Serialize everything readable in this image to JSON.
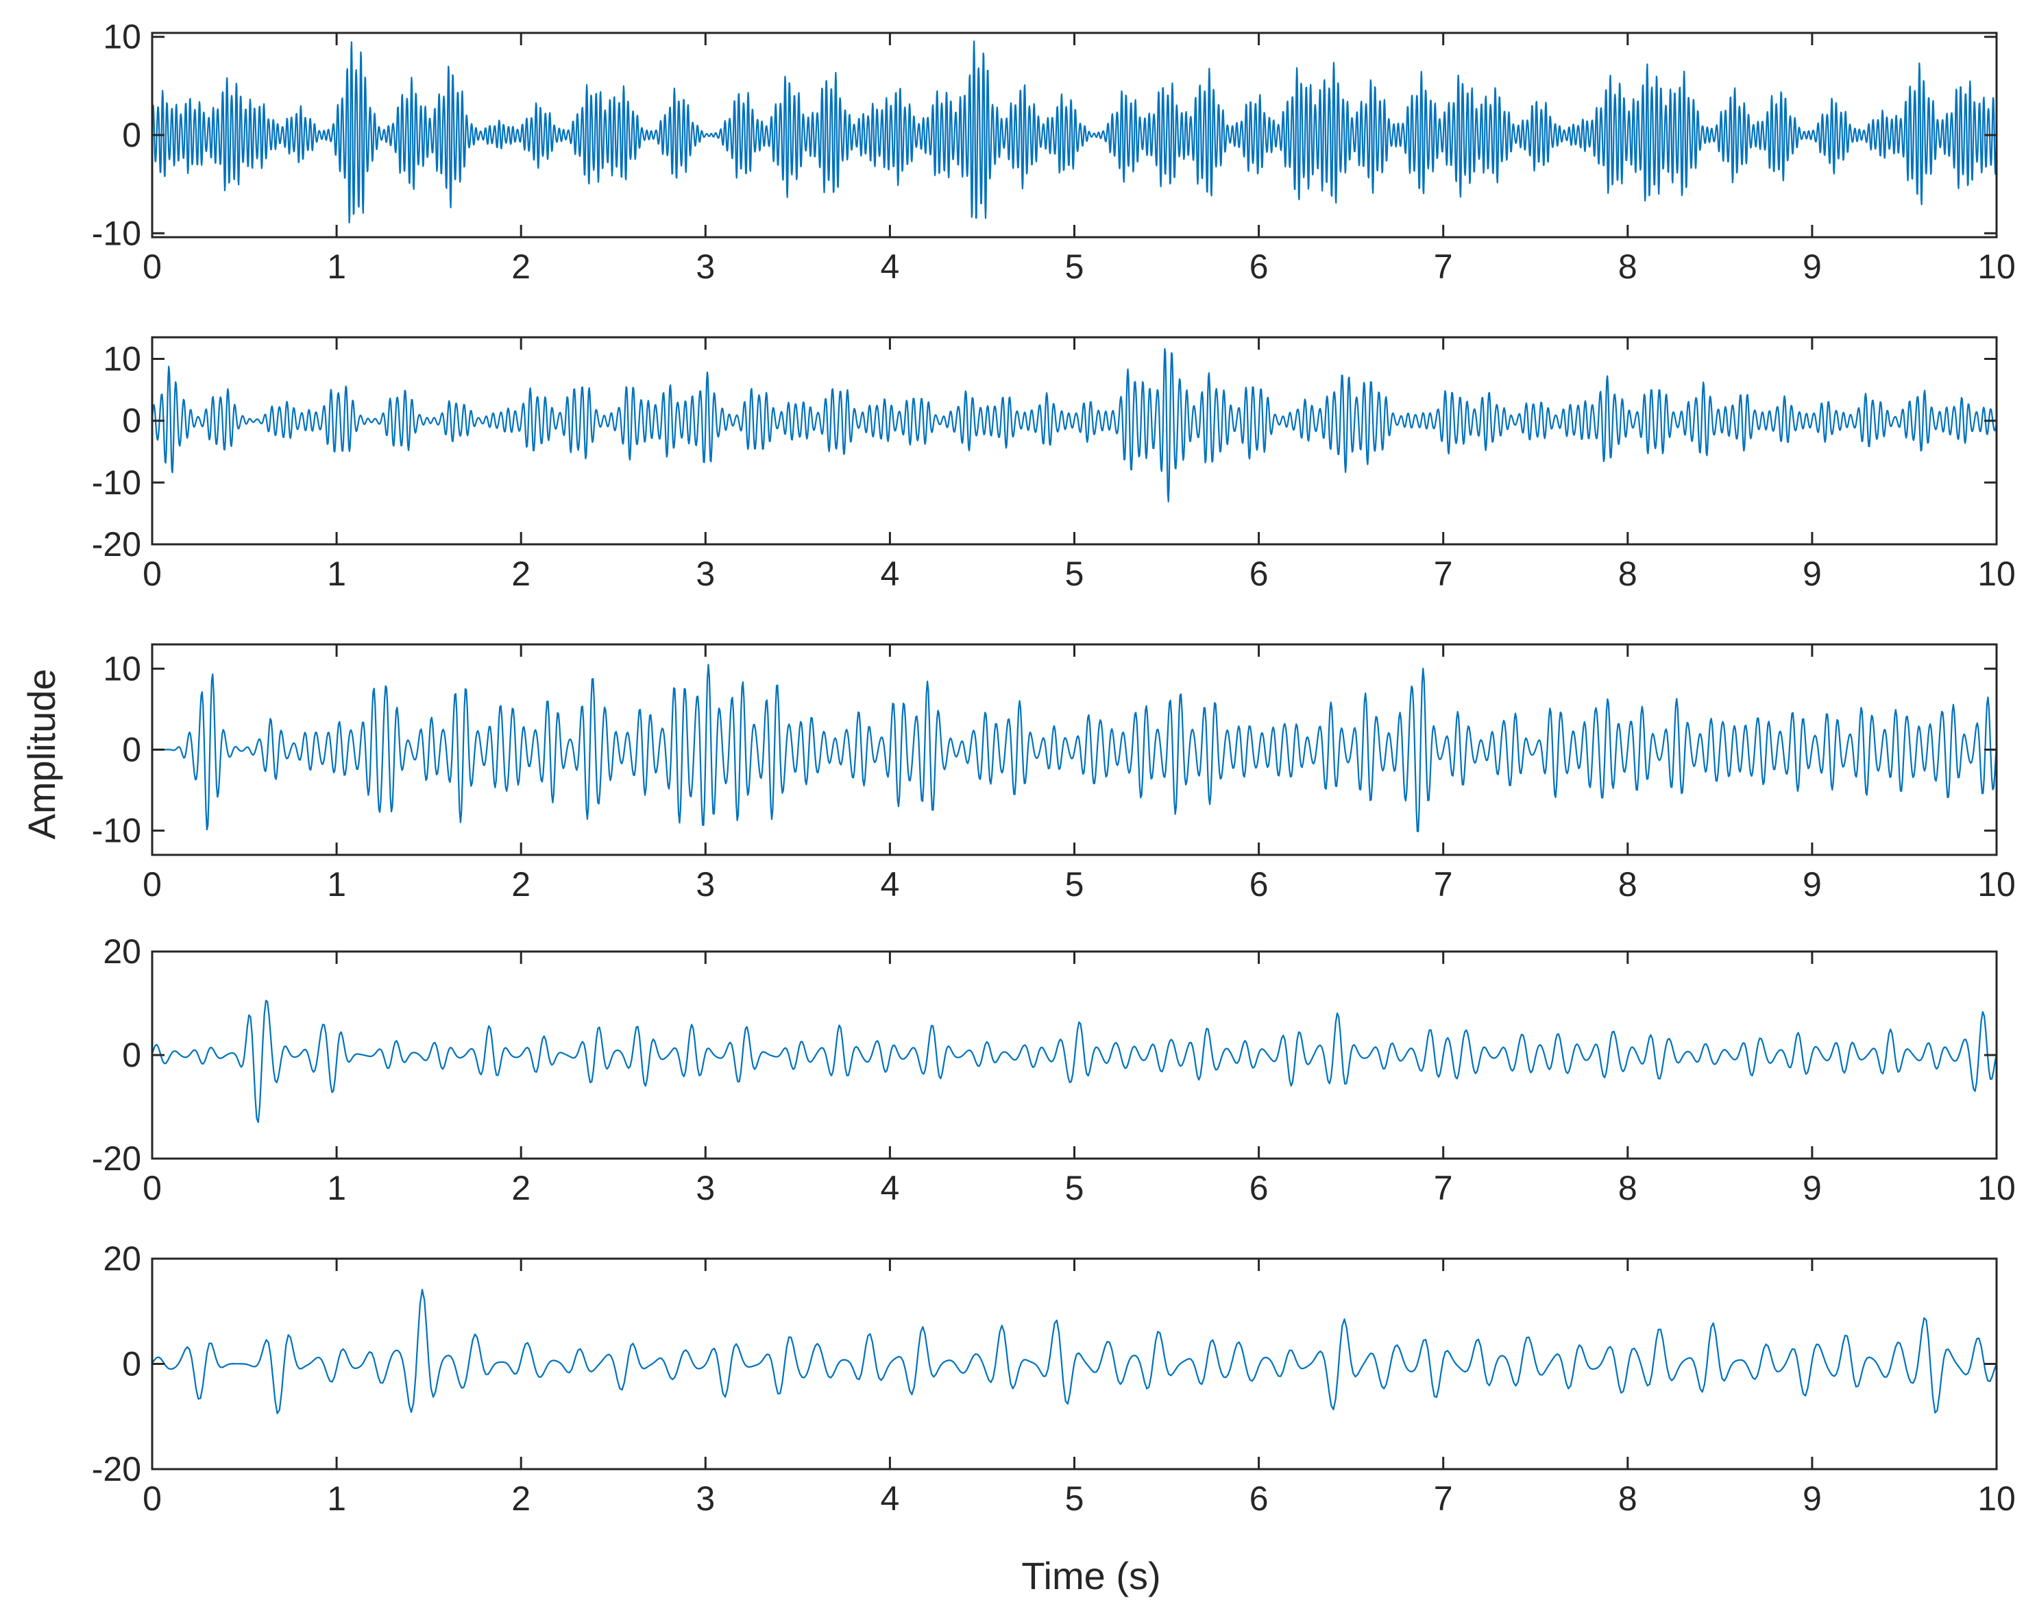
{
  "chart_data": {
    "type": "line",
    "layout": "5 stacked subplots sharing the time axis",
    "xlabel": "Time (s)",
    "ylabel": "Amplitude",
    "grid": false,
    "legend": "none",
    "line_color": "#0072BD",
    "axes_color": "#262626",
    "subplots": [
      {
        "xlim": [
          0,
          10
        ],
        "ylim": [
          -10.4,
          10.4
        ],
        "xticks": [
          "0",
          "1",
          "2",
          "3",
          "4",
          "5",
          "6",
          "7",
          "8",
          "9",
          "10"
        ],
        "yticks": [
          {
            "value": 10,
            "label": "10"
          },
          {
            "value": 0,
            "label": "0"
          },
          {
            "value": -10,
            "label": "-10"
          }
        ],
        "signal": {
          "carrier_hz": 40,
          "peak_amplitude": 10.4,
          "bursts": [
            [
              0.05,
              4.5
            ],
            [
              0.22,
              4.0
            ],
            [
              0.42,
              6.2
            ],
            [
              0.58,
              3.5
            ],
            [
              0.8,
              3.0
            ],
            [
              1.1,
              10.4
            ],
            [
              1.4,
              6.0
            ],
            [
              1.62,
              7.5
            ],
            [
              1.88,
              1.5
            ],
            [
              2.1,
              3.5
            ],
            [
              2.38,
              5.5
            ],
            [
              2.55,
              5.0
            ],
            [
              2.85,
              5.0
            ],
            [
              3.2,
              5.0
            ],
            [
              3.45,
              6.5
            ],
            [
              3.68,
              7.0
            ],
            [
              3.9,
              3.0
            ],
            [
              4.05,
              5.0
            ],
            [
              4.28,
              5.0
            ],
            [
              4.48,
              10.4
            ],
            [
              4.72,
              5.5
            ],
            [
              4.95,
              4.5
            ],
            [
              5.28,
              5.0
            ],
            [
              5.5,
              6.0
            ],
            [
              5.72,
              7.0
            ],
            [
              5.98,
              4.5
            ],
            [
              6.22,
              7.0
            ],
            [
              6.4,
              7.5
            ],
            [
              6.62,
              6.0
            ],
            [
              6.88,
              6.5
            ],
            [
              7.1,
              6.5
            ],
            [
              7.28,
              5.0
            ],
            [
              7.52,
              4.0
            ],
            [
              7.75,
              1.5
            ],
            [
              7.92,
              6.5
            ],
            [
              8.12,
              7.5
            ],
            [
              8.3,
              6.5
            ],
            [
              8.58,
              5.0
            ],
            [
              8.82,
              5.0
            ],
            [
              9.12,
              4.0
            ],
            [
              9.38,
              2.5
            ],
            [
              9.58,
              7.5
            ],
            [
              9.82,
              6.0
            ],
            [
              9.98,
              4.0
            ]
          ]
        }
      },
      {
        "xlim": [
          0,
          10
        ],
        "ylim": [
          -20,
          13.5
        ],
        "xticks": [
          "0",
          "1",
          "2",
          "3",
          "4",
          "5",
          "6",
          "7",
          "8",
          "9",
          "10"
        ],
        "yticks": [
          {
            "value": 10,
            "label": "10"
          },
          {
            "value": 0,
            "label": "0"
          },
          {
            "value": -10,
            "label": "-10"
          },
          {
            "value": -20,
            "label": "-20"
          }
        ],
        "signal": {
          "carrier_hz": 25,
          "peak_amplitude": 13.5,
          "bursts": [
            [
              0.1,
              9.0
            ],
            [
              0.38,
              6.0
            ],
            [
              0.7,
              3.5
            ],
            [
              0.85,
              1.5
            ],
            [
              1.02,
              7.0
            ],
            [
              1.35,
              6.0
            ],
            [
              1.65,
              4.0
            ],
            [
              1.9,
              2.0
            ],
            [
              2.08,
              6.0
            ],
            [
              2.32,
              7.5
            ],
            [
              2.6,
              6.5
            ],
            [
              2.8,
              6.0
            ],
            [
              3.0,
              8.0
            ],
            [
              3.28,
              6.5
            ],
            [
              3.5,
              4.0
            ],
            [
              3.72,
              7.0
            ],
            [
              3.95,
              4.0
            ],
            [
              4.15,
              5.0
            ],
            [
              4.42,
              5.0
            ],
            [
              4.62,
              4.5
            ],
            [
              4.85,
              4.5
            ],
            [
              5.08,
              3.5
            ],
            [
              5.32,
              9.5
            ],
            [
              5.52,
              13.5
            ],
            [
              5.75,
              8.5
            ],
            [
              5.98,
              7.5
            ],
            [
              6.25,
              3.5
            ],
            [
              6.45,
              8.5
            ],
            [
              6.62,
              7.5
            ],
            [
              6.85,
              1.5
            ],
            [
              7.05,
              6.0
            ],
            [
              7.25,
              5.0
            ],
            [
              7.5,
              4.0
            ],
            [
              7.72,
              3.5
            ],
            [
              7.9,
              7.5
            ],
            [
              8.15,
              7.0
            ],
            [
              8.4,
              6.5
            ],
            [
              8.62,
              5.0
            ],
            [
              8.85,
              4.0
            ],
            [
              9.08,
              3.5
            ],
            [
              9.32,
              5.0
            ],
            [
              9.58,
              5.5
            ],
            [
              9.8,
              4.0
            ],
            [
              9.98,
              2.5
            ]
          ]
        }
      },
      {
        "xlim": [
          0,
          10
        ],
        "ylim": [
          -13,
          13
        ],
        "xticks": [
          "0",
          "1",
          "2",
          "3",
          "4",
          "5",
          "6",
          "7",
          "8",
          "9",
          "10"
        ],
        "yticks": [
          {
            "value": 10,
            "label": "10"
          },
          {
            "value": 0,
            "label": "0"
          },
          {
            "value": -10,
            "label": "-10"
          }
        ],
        "signal": {
          "carrier_hz": 16,
          "peak_amplitude": 13,
          "bursts": [
            [
              0.3,
              10.5
            ],
            [
              0.65,
              4.0
            ],
            [
              0.88,
              3.0
            ],
            [
              1.05,
              4.0
            ],
            [
              1.25,
              12.0
            ],
            [
              1.5,
              4.0
            ],
            [
              1.68,
              9.0
            ],
            [
              1.92,
              8.0
            ],
            [
              2.15,
              7.0
            ],
            [
              2.4,
              11.0
            ],
            [
              2.65,
              6.0
            ],
            [
              2.85,
              8.5
            ],
            [
              3.0,
              10.5
            ],
            [
              3.18,
              9.0
            ],
            [
              3.38,
              9.0
            ],
            [
              3.58,
              5.0
            ],
            [
              3.82,
              5.5
            ],
            [
              4.05,
              7.0
            ],
            [
              4.22,
              8.5
            ],
            [
              4.5,
              5.0
            ],
            [
              4.68,
              6.5
            ],
            [
              4.9,
              3.0
            ],
            [
              5.12,
              6.0
            ],
            [
              5.35,
              6.5
            ],
            [
              5.55,
              8.0
            ],
            [
              5.75,
              7.0
            ],
            [
              5.95,
              4.0
            ],
            [
              6.15,
              5.0
            ],
            [
              6.38,
              6.0
            ],
            [
              6.6,
              7.5
            ],
            [
              6.85,
              13.0
            ],
            [
              7.1,
              5.0
            ],
            [
              7.35,
              6.0
            ],
            [
              7.62,
              6.5
            ],
            [
              7.85,
              8.5
            ],
            [
              8.05,
              6.0
            ],
            [
              8.28,
              6.5
            ],
            [
              8.5,
              5.5
            ],
            [
              8.7,
              5.5
            ],
            [
              8.9,
              5.5
            ],
            [
              9.1,
              5.0
            ],
            [
              9.3,
              6.0
            ],
            [
              9.5,
              6.5
            ],
            [
              9.72,
              7.5
            ],
            [
              9.95,
              6.5
            ]
          ]
        }
      },
      {
        "xlim": [
          0,
          10
        ],
        "ylim": [
          -20,
          20
        ],
        "xticks": [
          "0",
          "1",
          "2",
          "3",
          "4",
          "5",
          "6",
          "7",
          "8",
          "9",
          "10"
        ],
        "yticks": [
          {
            "value": 20,
            "label": "20"
          },
          {
            "value": 0,
            "label": "0"
          },
          {
            "value": -20,
            "label": "-20"
          }
        ],
        "signal": {
          "carrier_hz": 10,
          "peak_amplitude": 17,
          "bursts": [
            [
              0.05,
              2.5
            ],
            [
              0.3,
              2.0
            ],
            [
              0.6,
              17.0
            ],
            [
              0.95,
              10.0
            ],
            [
              1.3,
              3.0
            ],
            [
              1.55,
              3.0
            ],
            [
              1.82,
              6.0
            ],
            [
              2.1,
              4.0
            ],
            [
              2.4,
              6.0
            ],
            [
              2.65,
              6.5
            ],
            [
              2.92,
              6.0
            ],
            [
              3.2,
              6.0
            ],
            [
              3.5,
              3.0
            ],
            [
              3.72,
              6.0
            ],
            [
              3.95,
              4.0
            ],
            [
              4.22,
              7.0
            ],
            [
              4.5,
              3.0
            ],
            [
              4.75,
              3.0
            ],
            [
              5.0,
              9.0
            ],
            [
              5.25,
              4.0
            ],
            [
              5.5,
              5.0
            ],
            [
              5.72,
              6.5
            ],
            [
              5.95,
              3.0
            ],
            [
              6.18,
              6.0
            ],
            [
              6.42,
              8.5
            ],
            [
              6.68,
              3.0
            ],
            [
              6.92,
              6.0
            ],
            [
              7.12,
              7.5
            ],
            [
              7.42,
              6.0
            ],
            [
              7.65,
              6.0
            ],
            [
              7.92,
              7.0
            ],
            [
              8.18,
              6.5
            ],
            [
              8.45,
              3.0
            ],
            [
              8.7,
              5.0
            ],
            [
              8.95,
              5.0
            ],
            [
              9.18,
              3.5
            ],
            [
              9.42,
              5.0
            ],
            [
              9.65,
              3.0
            ],
            [
              9.9,
              10.0
            ]
          ]
        }
      },
      {
        "xlim": [
          0,
          10
        ],
        "ylim": [
          -20,
          20
        ],
        "xticks": [
          "0",
          "1",
          "2",
          "3",
          "4",
          "5",
          "6",
          "7",
          "8",
          "9",
          "10"
        ],
        "yticks": [
          {
            "value": 20,
            "label": "20"
          },
          {
            "value": 0,
            "label": "0"
          },
          {
            "value": -20,
            "label": "-20"
          }
        ],
        "signal": {
          "carrier_hz": 7,
          "peak_amplitude": 15,
          "bursts": [
            [
              0.05,
              1.5
            ],
            [
              0.25,
              8.0
            ],
            [
              0.68,
              10.0
            ],
            [
              0.98,
              5.0
            ],
            [
              1.25,
              5.0
            ],
            [
              1.45,
              15.0
            ],
            [
              1.72,
              9.0
            ],
            [
              2.05,
              6.0
            ],
            [
              2.32,
              3.0
            ],
            [
              2.55,
              6.5
            ],
            [
              2.85,
              5.0
            ],
            [
              3.12,
              7.0
            ],
            [
              3.42,
              6.5
            ],
            [
              3.62,
              6.0
            ],
            [
              3.9,
              6.5
            ],
            [
              4.15,
              8.0
            ],
            [
              4.42,
              3.0
            ],
            [
              4.62,
              7.5
            ],
            [
              4.92,
              10.0
            ],
            [
              5.2,
              7.0
            ],
            [
              5.45,
              7.5
            ],
            [
              5.72,
              5.0
            ],
            [
              5.92,
              6.5
            ],
            [
              6.15,
              3.0
            ],
            [
              6.42,
              12.0
            ],
            [
              6.7,
              7.5
            ],
            [
              6.95,
              7.0
            ],
            [
              7.2,
              6.0
            ],
            [
              7.45,
              8.0
            ],
            [
              7.7,
              5.0
            ],
            [
              7.95,
              7.0
            ],
            [
              8.18,
              8.5
            ],
            [
              8.45,
              8.0
            ],
            [
              8.72,
              5.0
            ],
            [
              8.98,
              8.5
            ],
            [
              9.2,
              6.0
            ],
            [
              9.45,
              6.0
            ],
            [
              9.65,
              11.0
            ],
            [
              9.9,
              6.0
            ]
          ]
        }
      }
    ]
  }
}
